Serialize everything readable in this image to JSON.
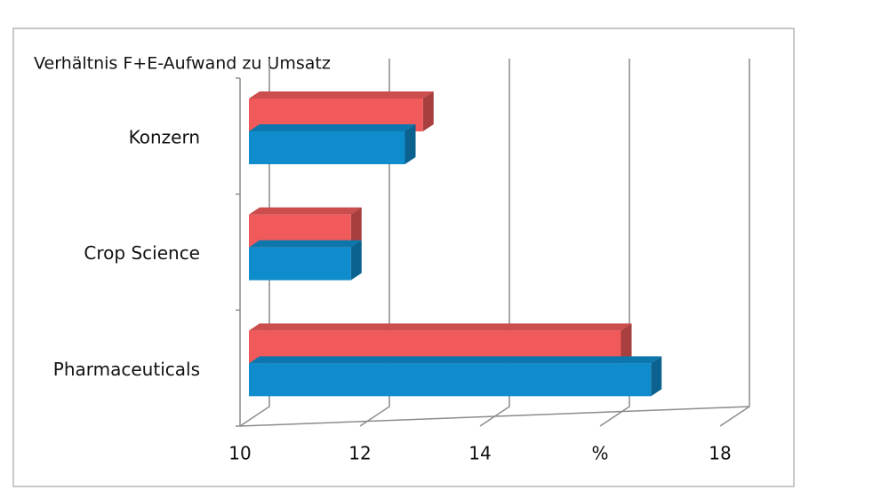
{
  "chart_data": {
    "type": "bar3d_horizontal",
    "title": "Verhältnis F+E-Aufwand zu Umsatz",
    "categories": [
      "Konzern",
      "Crop Science",
      "Pharmaceuticals"
    ],
    "series": [
      {
        "color": "#f05a5a",
        "values": [
          12.9,
          11.7,
          16.2
        ]
      },
      {
        "color": "#0f8ccc",
        "values": [
          12.6,
          11.7,
          16.7
        ]
      }
    ],
    "xlim": [
      10,
      18
    ],
    "xticks": [
      10,
      12,
      14,
      {
        "value": 16,
        "label": "%"
      },
      18
    ],
    "grid": true
  }
}
